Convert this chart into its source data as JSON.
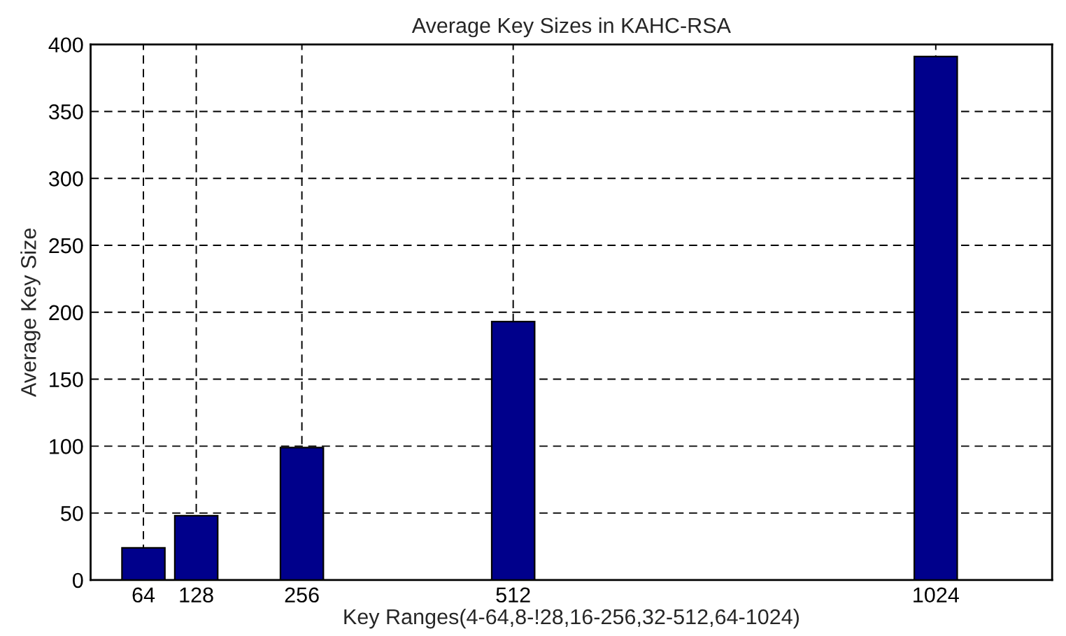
{
  "chart_data": {
    "type": "bar",
    "title": "Average Key Sizes in KAHC-RSA",
    "xlabel": "Key Ranges(4-64,8-!28,16-256,32-512,64-1024)",
    "ylabel": "Average Key Size",
    "x": [
      64,
      128,
      256,
      512,
      1024
    ],
    "series": [
      {
        "color": "#00008b",
        "values": [
          24,
          48,
          99,
          193,
          391
        ]
      }
    ],
    "xlim": [
      0,
      1165
    ],
    "xticks": [
      64,
      128,
      256,
      512,
      1024
    ],
    "ylim": [
      0,
      400
    ],
    "yticks": [
      0,
      50,
      100,
      150,
      200,
      250,
      300,
      350,
      400
    ],
    "grid": true
  }
}
